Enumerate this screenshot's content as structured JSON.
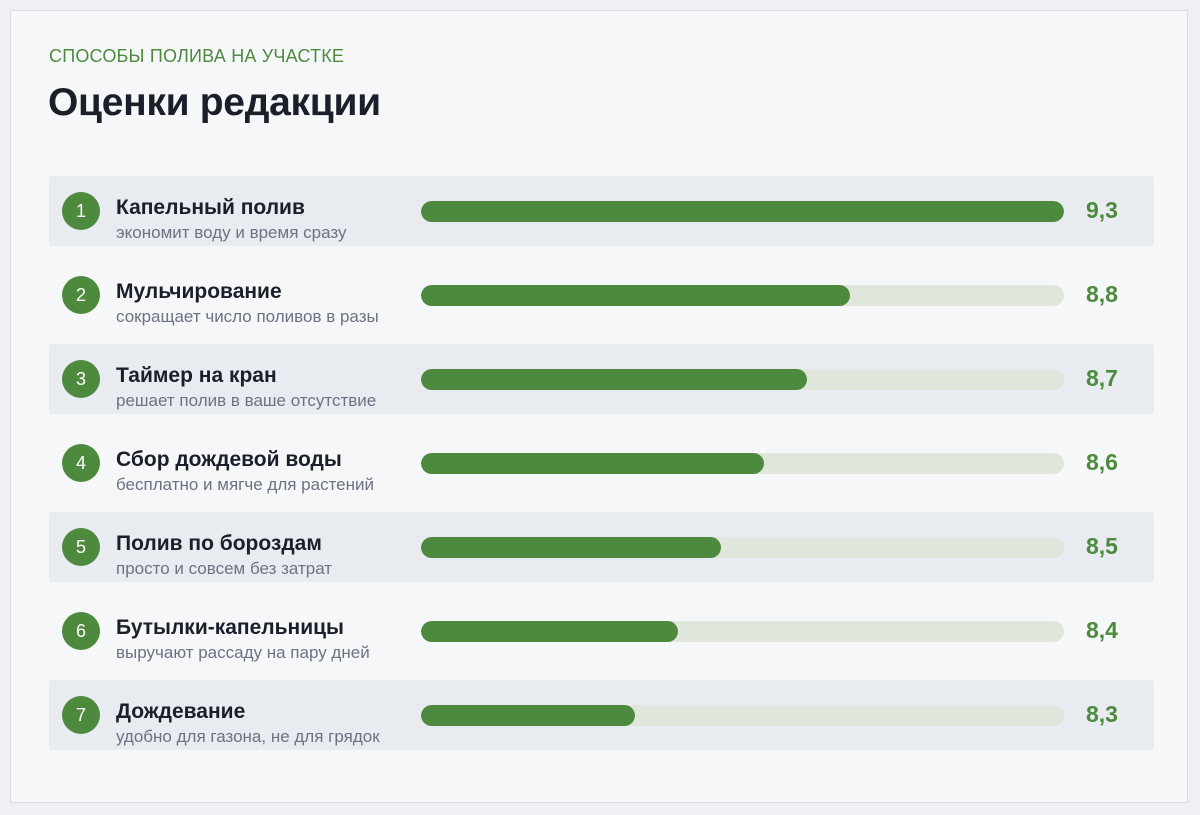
{
  "header": {
    "kicker": "СПОСОБЫ ПОЛИВА НА УЧАСТКЕ",
    "title": "Оценки редакции"
  },
  "colors": {
    "accent": "#4e8a3e",
    "track": "#dfe6dc",
    "row_shade": "#e8ebef"
  },
  "chart_data": {
    "type": "bar",
    "orientation": "horizontal",
    "title": "Оценки редакции",
    "subtitle": "СПОСОБЫ ПОЛИВА НА УЧАСТКЕ",
    "xlim": [
      7.8,
      9.3
    ],
    "items": [
      {
        "rank": "1",
        "name": "Капельный полив",
        "desc": "экономит воду и время сразу",
        "value": 9.3,
        "label": "9,3"
      },
      {
        "rank": "2",
        "name": "Мульчирование",
        "desc": "сокращает число поливов в разы",
        "value": 8.8,
        "label": "8,8"
      },
      {
        "rank": "3",
        "name": "Таймер на кран",
        "desc": "решает полив в ваше отсутствие",
        "value": 8.7,
        "label": "8,7"
      },
      {
        "rank": "4",
        "name": "Сбор дождевой воды",
        "desc": "бесплатно и мягче для растений",
        "value": 8.6,
        "label": "8,6"
      },
      {
        "rank": "5",
        "name": "Полив по бороздам",
        "desc": "просто и совсем без затрат",
        "value": 8.5,
        "label": "8,5"
      },
      {
        "rank": "6",
        "name": "Бутылки-капельницы",
        "desc": "выручают рассаду на пару дней",
        "value": 8.4,
        "label": "8,4"
      },
      {
        "rank": "7",
        "name": "Дождевание",
        "desc": "удобно для газона, не для грядок",
        "value": 8.3,
        "label": "8,3"
      }
    ]
  }
}
